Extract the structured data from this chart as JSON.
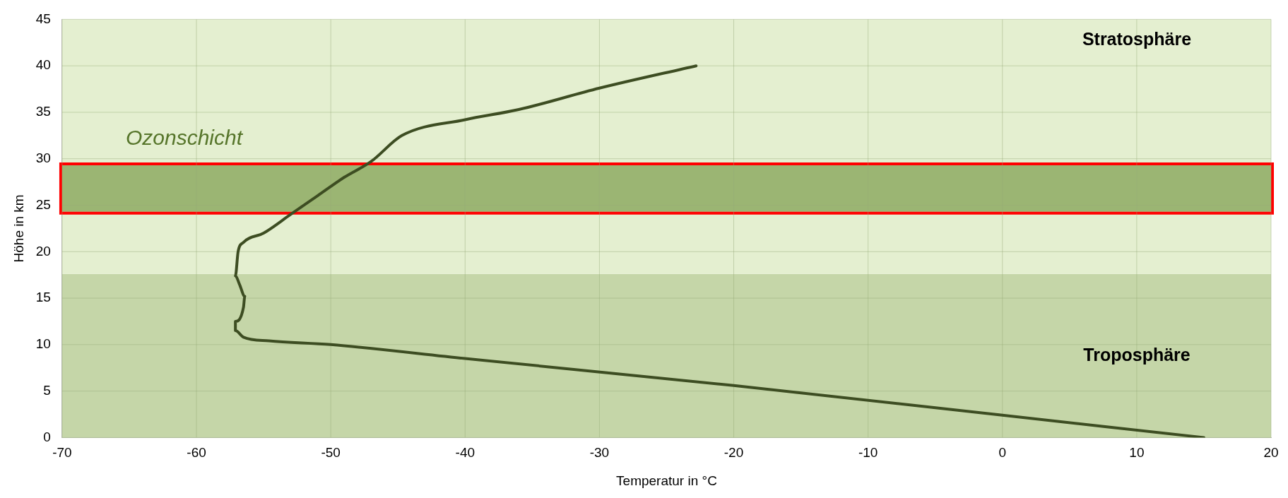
{
  "chart_data": {
    "type": "line",
    "xlabel": "Temperatur in °C",
    "ylabel": "Höhe in km",
    "xlim": [
      -70,
      20
    ],
    "xticks": [
      -70,
      -60,
      -50,
      -40,
      -30,
      -20,
      -10,
      0,
      10,
      20
    ],
    "ylim": [
      0,
      45
    ],
    "yticks": [
      0,
      5,
      10,
      15,
      20,
      25,
      30,
      35,
      40,
      45
    ],
    "grid": true,
    "legend": false,
    "marker": "none",
    "line_style": "solid",
    "series": [
      {
        "color": "#3d4d22",
        "x": [
          15,
          0,
          -20,
          -40,
          -50,
          -54.6,
          -56.5,
          -57.1,
          -57.1,
          -56.5,
          -56.4,
          -56.8,
          -57.1,
          -56.9,
          -56.5,
          -55,
          -53,
          -51,
          -49,
          -47,
          -44.7,
          -40,
          -36,
          -30,
          -22.8
        ],
        "values": [
          0,
          2.4,
          5.6,
          8.5,
          10,
          10.4,
          10.8,
          11.5,
          12.5,
          14,
          15.2,
          16.5,
          17.4,
          20,
          21,
          22,
          24,
          26,
          28,
          29.7,
          32.5,
          34.2,
          35.3,
          37.6,
          40
        ]
      }
    ],
    "bands": [
      {
        "axis": "y",
        "from": 0,
        "to": 17.6,
        "label": "Troposphäre",
        "color": "#c5d6a8"
      },
      {
        "axis": "y",
        "from": 17.6,
        "to": 45,
        "label": "Stratosphäre",
        "color": "#e4efd0"
      },
      {
        "axis": "y",
        "from": 24.3,
        "to": 29.3,
        "label": "Ozonschicht",
        "color": "#9bb573"
      }
    ]
  }
}
